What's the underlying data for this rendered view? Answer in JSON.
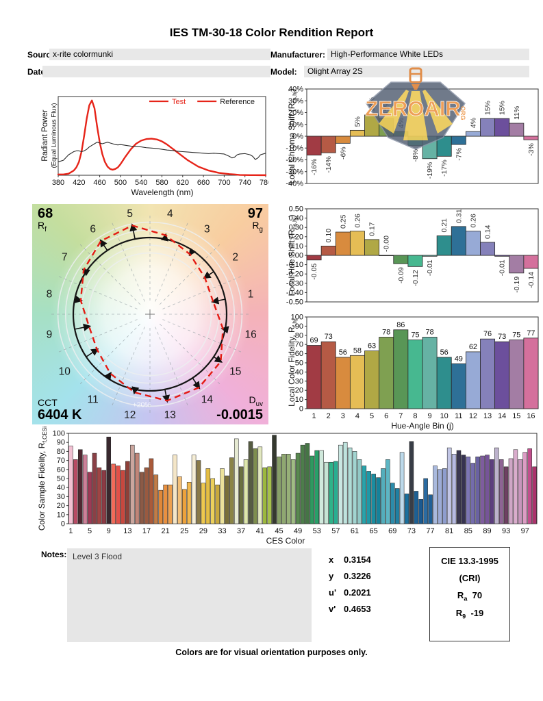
{
  "page": {
    "title": "IES TM-30-18 Color Rendition Report",
    "footer": "Colors are for visual orientation purposes only."
  },
  "header": {
    "source_label": "Source:",
    "source_value": "x-rite colormunki",
    "manufacturer_label": "Manufacturer:",
    "manufacturer_value": "High-Performance White LEDs",
    "date_label": "Date:",
    "date_value": "",
    "model_label": "Model:",
    "model_value": "Olight Array 2S"
  },
  "logo": {
    "text": "ZEROAIR",
    "suffix": "ORG"
  },
  "cvg": {
    "rf_value": "68",
    "rf_pre": "R",
    "rf_sub": "f",
    "rg_value": "97",
    "rg_pre": "R",
    "rg_sub": "g",
    "cct_label": "CCT",
    "cct_value": "6404 K",
    "duv_pre": "D",
    "duv_sub": "uv",
    "duv_value": "-0.0015",
    "ring_label": "+20%",
    "bins": [
      1,
      2,
      3,
      4,
      5,
      6,
      7,
      8,
      9,
      10,
      11,
      12,
      13,
      14,
      15,
      16
    ]
  },
  "notes": {
    "label": "Notes:",
    "value": "Level 3 Flood"
  },
  "chromaticity": {
    "x_label": "x",
    "x_value": "0.3154",
    "y_label": "y",
    "y_value": "0.3226",
    "u_label": "u'",
    "u_value": "0.2021",
    "v_label": "v'",
    "v_value": "0.4653"
  },
  "cie": {
    "title": "CIE 13.3-1995",
    "subtitle": "(CRI)",
    "ra_pre": "R",
    "ra_sub": "a",
    "ra_value": "70",
    "r9_pre": "R",
    "r9_sub": "9",
    "r9_value": "-19"
  },
  "bin_colors": [
    "#a13b44",
    "#b55a45",
    "#d88b3e",
    "#e5bd55",
    "#b0a845",
    "#7fa051",
    "#599656",
    "#47b890",
    "#66b2a4",
    "#2e8e8d",
    "#2e7097",
    "#97aad6",
    "#8581ba",
    "#6c4f9c",
    "#a37da4",
    "#d4709c"
  ],
  "chart_data": [
    {
      "id": "spectral",
      "type": "line",
      "xlabel": "Wavelength (nm)",
      "ylabel_line1": "Radiant Power",
      "ylabel_line2": "(Equal Luminous Flux)",
      "xlim": [
        380,
        780
      ],
      "ylim": [
        0,
        1
      ],
      "grid": false,
      "legend_position": "top-right",
      "x_ticks": [
        380,
        420,
        460,
        500,
        540,
        580,
        620,
        660,
        700,
        740,
        780
      ],
      "legend": [
        {
          "label": "Test",
          "line_color": "#e62419",
          "text_color": "#e62419"
        },
        {
          "label": "Reference",
          "line_color": "#e62419",
          "text_color": "#1a1a1a"
        }
      ],
      "series": [
        {
          "name": "Test",
          "color": "#e62419",
          "width": 2.4,
          "points": [
            [
              380,
              0.01
            ],
            [
              390,
              0.01
            ],
            [
              400,
              0.02
            ],
            [
              410,
              0.06
            ],
            [
              415,
              0.1
            ],
            [
              420,
              0.17
            ],
            [
              425,
              0.3
            ],
            [
              430,
              0.5
            ],
            [
              435,
              0.72
            ],
            [
              440,
              0.89
            ],
            [
              445,
              0.95
            ],
            [
              450,
              0.85
            ],
            [
              455,
              0.62
            ],
            [
              460,
              0.42
            ],
            [
              465,
              0.27
            ],
            [
              470,
              0.17
            ],
            [
              475,
              0.11
            ],
            [
              480,
              0.08
            ],
            [
              485,
              0.07
            ],
            [
              490,
              0.08
            ],
            [
              495,
              0.1
            ],
            [
              500,
              0.14
            ],
            [
              510,
              0.24
            ],
            [
              520,
              0.33
            ],
            [
              530,
              0.4
            ],
            [
              540,
              0.44
            ],
            [
              550,
              0.46
            ],
            [
              560,
              0.465
            ],
            [
              570,
              0.455
            ],
            [
              580,
              0.43
            ],
            [
              590,
              0.39
            ],
            [
              600,
              0.34
            ],
            [
              610,
              0.29
            ],
            [
              620,
              0.24
            ],
            [
              630,
              0.19
            ],
            [
              640,
              0.15
            ],
            [
              650,
              0.11
            ],
            [
              660,
              0.085
            ],
            [
              670,
              0.06
            ],
            [
              680,
              0.045
            ],
            [
              690,
              0.03
            ],
            [
              700,
              0.022
            ],
            [
              710,
              0.015
            ],
            [
              720,
              0.01
            ],
            [
              730,
              0.004
            ],
            [
              740,
              0.003
            ],
            [
              750,
              0.002
            ],
            [
              760,
              0.002
            ],
            [
              770,
              0.001
            ],
            [
              780,
              0.001
            ]
          ]
        },
        {
          "name": "Reference",
          "color": "#2a2a2a",
          "width": 1.1,
          "points": [
            [
              380,
              0.17
            ],
            [
              390,
              0.19
            ],
            [
              400,
              0.26
            ],
            [
              410,
              0.3
            ],
            [
              415,
              0.31
            ],
            [
              420,
              0.31
            ],
            [
              425,
              0.3
            ],
            [
              430,
              0.31
            ],
            [
              435,
              0.33
            ],
            [
              440,
              0.36
            ],
            [
              445,
              0.38
            ],
            [
              450,
              0.4
            ],
            [
              455,
              0.42
            ],
            [
              460,
              0.41
            ],
            [
              465,
              0.4
            ],
            [
              470,
              0.41
            ],
            [
              475,
              0.42
            ],
            [
              480,
              0.41
            ],
            [
              485,
              0.4
            ],
            [
              490,
              0.39
            ],
            [
              495,
              0.385
            ],
            [
              500,
              0.39
            ],
            [
              505,
              0.385
            ],
            [
              510,
              0.38
            ],
            [
              520,
              0.37
            ],
            [
              530,
              0.365
            ],
            [
              540,
              0.36
            ],
            [
              550,
              0.35
            ],
            [
              560,
              0.345
            ],
            [
              570,
              0.34
            ],
            [
              580,
              0.33
            ],
            [
              590,
              0.32
            ],
            [
              600,
              0.315
            ],
            [
              610,
              0.305
            ],
            [
              620,
              0.3
            ],
            [
              630,
              0.295
            ],
            [
              640,
              0.29
            ],
            [
              650,
              0.285
            ],
            [
              660,
              0.28
            ],
            [
              670,
              0.275
            ],
            [
              680,
              0.28
            ],
            [
              690,
              0.275
            ],
            [
              700,
              0.27
            ],
            [
              710,
              0.24
            ],
            [
              715,
              0.22
            ],
            [
              720,
              0.23
            ],
            [
              725,
              0.26
            ],
            [
              730,
              0.27
            ],
            [
              740,
              0.275
            ],
            [
              750,
              0.26
            ],
            [
              755,
              0.24
            ],
            [
              760,
              0.2
            ],
            [
              765,
              0.22
            ],
            [
              770,
              0.26
            ],
            [
              775,
              0.27
            ],
            [
              780,
              0.28
            ]
          ]
        }
      ]
    },
    {
      "id": "chroma_shift",
      "type": "bar",
      "title": "Local Chroma Shift",
      "ylabel": {
        "pre": "Local Chroma Shift (R",
        "sub": "cs,hj",
        "post": ")"
      },
      "ylim": [
        -40,
        40
      ],
      "ytick_step": 10,
      "ytick_suffix": "%",
      "categories": [
        1,
        2,
        3,
        4,
        5,
        6,
        7,
        8,
        9,
        10,
        11,
        12,
        13,
        14,
        15,
        16
      ],
      "values": [
        -16,
        -14,
        -6,
        5,
        18,
        15,
        4,
        -8,
        -19,
        -17,
        -7,
        4,
        15,
        15,
        11,
        -3
      ],
      "bar_labels": [
        "-16%",
        "-14%",
        "-6%",
        "5%",
        "18%",
        "15%",
        "4%",
        "-8%",
        "-19%",
        "-17%",
        "-7%",
        "4%",
        "15%",
        "15%",
        "11%",
        "-3%"
      ]
    },
    {
      "id": "hue_shift",
      "type": "bar",
      "title": "Local Hue Shift",
      "ylabel": {
        "pre": "Local Hue Shift (R",
        "sub": "hs,hj",
        "post": ")"
      },
      "ylim": [
        -0.5,
        0.5
      ],
      "ytick_step": 0.1,
      "ytick_decimals": 2,
      "categories": [
        1,
        2,
        3,
        4,
        5,
        6,
        7,
        8,
        9,
        10,
        11,
        12,
        13,
        14,
        15,
        16
      ],
      "values": [
        -0.05,
        0.1,
        0.25,
        0.26,
        0.17,
        0.0,
        -0.09,
        -0.12,
        -0.01,
        0.21,
        0.31,
        0.26,
        0.14,
        -0.01,
        -0.19,
        -0.14
      ],
      "bar_labels": [
        "-0.05",
        "0.10",
        "0.25",
        "0.26",
        "0.17",
        "-0.00",
        "-0.09",
        "-0.12",
        "-0.01",
        "0.21",
        "0.31",
        "0.26",
        "0.14",
        "-0.01",
        "-0.19",
        "-0.14"
      ]
    },
    {
      "id": "local_fidelity",
      "type": "bar",
      "title": "Local Color Fidelity",
      "ylabel": {
        "pre": "Local Color Fidelity, R",
        "sub": "f,hj",
        "post": ""
      },
      "xlabel": "Hue-Angle Bin (j)",
      "ylim": [
        0,
        100
      ],
      "ytick_step": 10,
      "categories": [
        1,
        2,
        3,
        4,
        5,
        6,
        7,
        8,
        9,
        10,
        11,
        12,
        13,
        14,
        15,
        16
      ],
      "values": [
        69,
        73,
        56,
        58,
        63,
        78,
        86,
        75,
        78,
        56,
        49,
        62,
        76,
        73,
        75,
        77
      ],
      "bar_labels": [
        "69",
        "73",
        "56",
        "58",
        "63",
        "78",
        "86",
        "75",
        "78",
        "56",
        "49",
        "62",
        "76",
        "73",
        "75",
        "77"
      ]
    },
    {
      "id": "ces_fidelity",
      "type": "bar",
      "title": "Color Sample Fidelity",
      "ylabel": {
        "pre": "Color Sample Fidelity, R",
        "sub": "f,CESi",
        "post": ""
      },
      "xlabel": "CES Color",
      "ylim": [
        0,
        100
      ],
      "ytick_step": 10,
      "x_tick_labels": [
        1,
        5,
        9,
        13,
        17,
        21,
        25,
        29,
        33,
        37,
        41,
        45,
        49,
        53,
        57,
        61,
        65,
        69,
        73,
        77,
        81,
        85,
        89,
        93,
        97
      ],
      "values": [
        86,
        71,
        82,
        76,
        57,
        78,
        62,
        59,
        96,
        66,
        64,
        59,
        69,
        87,
        78,
        57,
        62,
        72,
        54,
        37,
        43,
        43,
        76,
        52,
        38,
        46,
        76,
        70,
        45,
        61,
        50,
        43,
        61,
        53,
        73,
        94,
        63,
        71,
        91,
        83,
        85,
        62,
        63,
        98,
        74,
        77,
        77,
        71,
        78,
        87,
        89,
        75,
        81,
        81,
        68,
        68,
        69,
        87,
        90,
        84,
        80,
        71,
        64,
        58,
        55,
        51,
        61,
        71,
        45,
        39,
        79,
        33,
        91,
        36,
        27,
        50,
        32,
        64,
        60,
        61,
        84,
        77,
        81,
        76,
        74,
        67,
        74,
        75,
        76,
        71,
        84,
        71,
        63,
        72,
        82,
        71,
        79,
        83,
        63
      ],
      "colors": [
        "#f2c0d2",
        "#b84a64",
        "#4f2831",
        "#cc8098",
        "#9c3a55",
        "#8a4046",
        "#a04444",
        "#8c3a44",
        "#39282e",
        "#f26a58",
        "#e25048",
        "#c8473e",
        "#8e4038",
        "#cba69e",
        "#c08578",
        "#8c5a46",
        "#9a5a40",
        "#aa5a3a",
        "#c07c48",
        "#e08838",
        "#e89040",
        "#eda04e",
        "#f4e6c8",
        "#f4c078",
        "#eda23c",
        "#f2b84e",
        "#f6eed6",
        "#8a7a48",
        "#eec84e",
        "#e4be44",
        "#ecd05c",
        "#c8a83c",
        "#ece29a",
        "#7a7038",
        "#8a8446",
        "#e6ead2",
        "#6a7040",
        "#dde6ac",
        "#565c42",
        "#7e8e4e",
        "#e2e8c0",
        "#9cb83e",
        "#a6c14a",
        "#35392f",
        "#87a068",
        "#8fa870",
        "#97b078",
        "#a0bc84",
        "#58884f",
        "#4d7d4b",
        "#457545",
        "#2f9960",
        "#28a069",
        "#d0e9dc",
        "#c6e4d4",
        "#2eb389",
        "#28ae91",
        "#c9e7e1",
        "#bfe3dd",
        "#b0dcd6",
        "#a2d4d0",
        "#92c9c6",
        "#28a3ab",
        "#1f98a6",
        "#1a8da0",
        "#15829a",
        "#53aebc",
        "#5cb6c4",
        "#2b8cab",
        "#2080a2",
        "#bcd9ea",
        "#1a6f9c",
        "#383d46",
        "#1d6094",
        "#1a5990",
        "#2b6ba1",
        "#206097",
        "#a9b9dd",
        "#9cabd6",
        "#8e9dce",
        "#c2c6e6",
        "#b6bae0",
        "#3b3850",
        "#363350",
        "#7c76b4",
        "#746cac",
        "#6a62a2",
        "#7e5c9e",
        "#765498",
        "#5c3f7e",
        "#bcb2cc",
        "#8e6494",
        "#6e4062",
        "#cfa6c6",
        "#d9accc",
        "#c795bc",
        "#dc9cc4",
        "#c14e8c",
        "#ab336c"
      ]
    }
  ]
}
